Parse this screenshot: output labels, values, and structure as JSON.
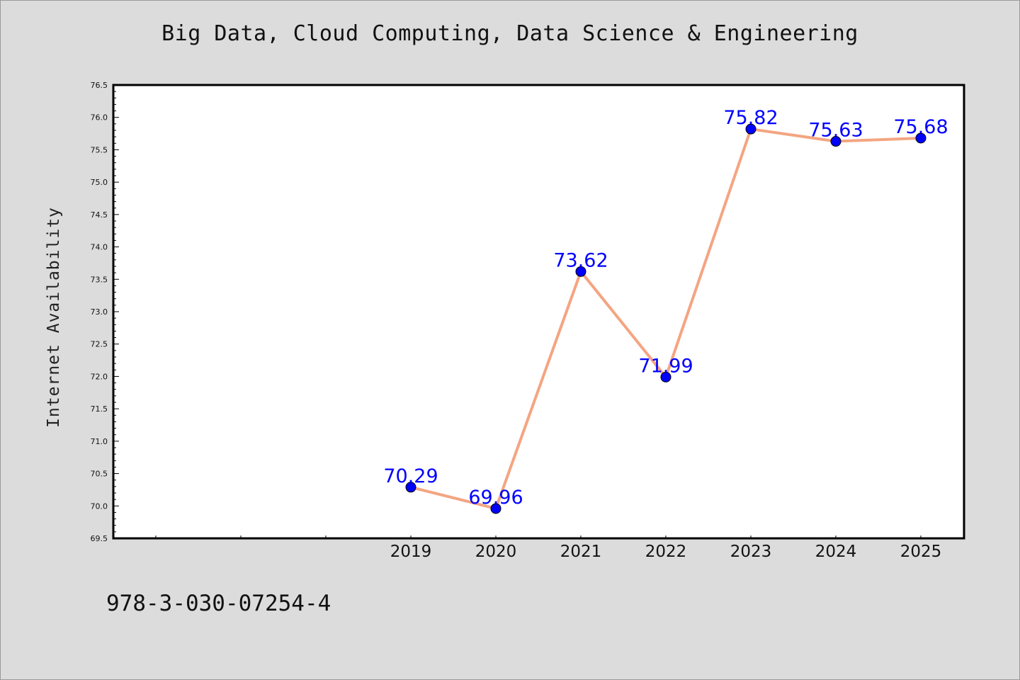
{
  "chart_data": {
    "type": "line",
    "title": "Big Data, Cloud Computing, Data Science & Engineering",
    "xlabel": "",
    "ylabel": "Internet Availability",
    "x": [
      "2019",
      "2020",
      "2021",
      "2022",
      "2023",
      "2024",
      "2025"
    ],
    "series": [
      {
        "values": [
          70.29,
          69.96,
          73.62,
          71.99,
          75.82,
          75.63,
          75.68
        ],
        "labels": [
          "70.29",
          "69.96",
          "73.62",
          "71.99",
          "75.82",
          "75.63",
          "75.68"
        ]
      }
    ],
    "ylim": [
      69.5,
      76.5
    ],
    "yticks": [
      "69.5",
      "70.0",
      "70.5",
      "71.0",
      "71.5",
      "72.0",
      "72.5",
      "73.0",
      "73.5",
      "74.0",
      "74.5",
      "75.0",
      "75.5",
      "76.0",
      "76.5"
    ],
    "x_slots_before_first": 3,
    "grid": false,
    "line_color": "#f4a582",
    "marker_color": "#0000ff",
    "label_color": "#0000ff"
  },
  "footer": {
    "code": "978-3-030-07254-4"
  }
}
